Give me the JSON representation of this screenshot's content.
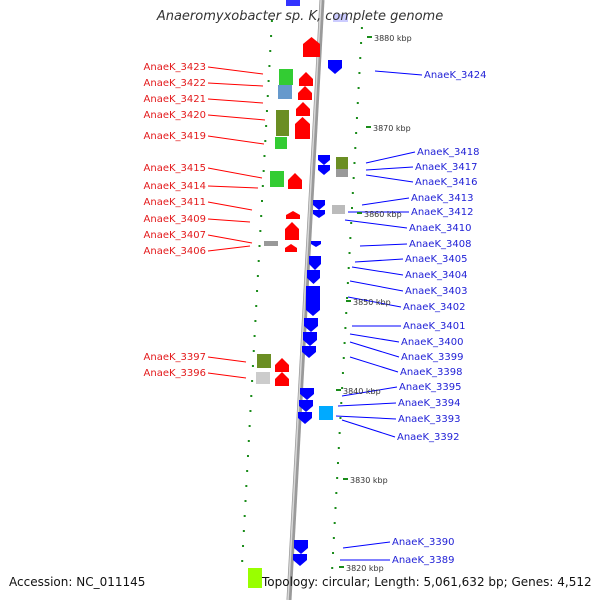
{
  "title": "Anaeromyxobacter sp. K, complete genome",
  "footer": {
    "accession": "Accession: NC_011145",
    "summary": "Topology: circular; Length: 5,061,632 bp; Genes: 4,512"
  },
  "colors": {
    "forward": "#ff0000",
    "reverse": "#0000ff",
    "ruler_tick": "#1a8c1a",
    "backbone": "#999999"
  },
  "ruler": [
    "3880 kbp",
    "3870 kbp",
    "3860 kbp",
    "3850 kbp",
    "3840 kbp",
    "3830 kbp",
    "3820 kbp"
  ],
  "left_labels": [
    "AnaeK_3423",
    "AnaeK_3422",
    "AnaeK_3421",
    "AnaeK_3420",
    "AnaeK_3419",
    "AnaeK_3415",
    "AnaeK_3414",
    "AnaeK_3411",
    "AnaeK_3409",
    "AnaeK_3407",
    "AnaeK_3406",
    "AnaeK_3397",
    "AnaeK_3396"
  ],
  "right_labels": [
    "AnaeK_3424",
    "AnaeK_3418",
    "AnaeK_3417",
    "AnaeK_3416",
    "AnaeK_3413",
    "AnaeK_3412",
    "AnaeK_3410",
    "AnaeK_3408",
    "AnaeK_3405",
    "AnaeK_3404",
    "AnaeK_3403",
    "AnaeK_3402",
    "AnaeK_3401",
    "AnaeK_3400",
    "AnaeK_3399",
    "AnaeK_3398",
    "AnaeK_3395",
    "AnaeK_3394",
    "AnaeK_3393",
    "AnaeK_3392",
    "AnaeK_3390",
    "AnaeK_3389"
  ]
}
